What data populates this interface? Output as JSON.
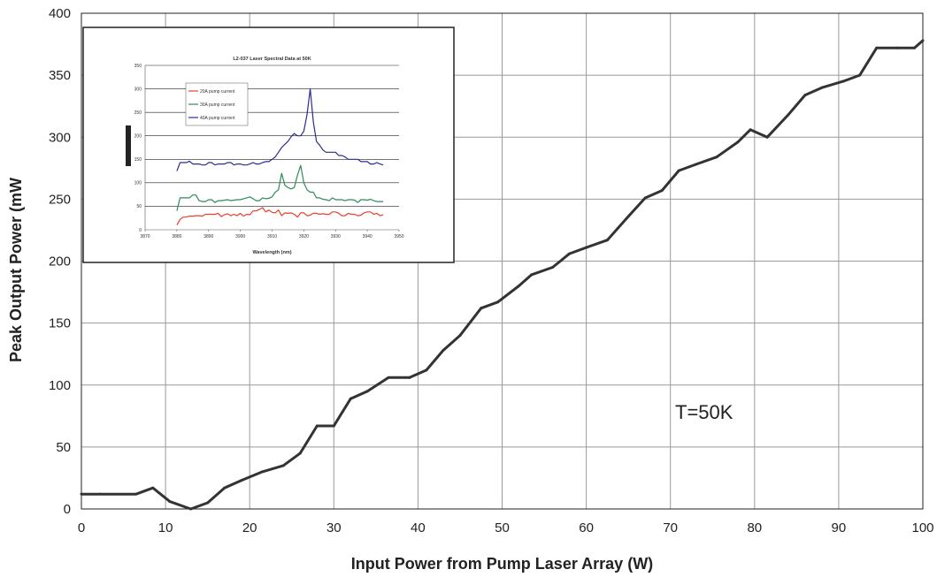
{
  "chart_data": [
    {
      "type": "line",
      "title": "",
      "xlabel": "Input Power from Pump Laser Array (W)",
      "ylabel": "Peak Output Power (mW",
      "xlim": [
        0,
        100
      ],
      "ylim": [
        0,
        400
      ],
      "xticks": [
        0,
        10,
        20,
        30,
        40,
        50,
        60,
        70,
        80,
        90,
        100
      ],
      "yticks": [
        0,
        50,
        100,
        150,
        200,
        250,
        300,
        350,
        400
      ],
      "grid": true,
      "annotation": "T=50K",
      "colors": {
        "line": "#333333",
        "grid": "#999999"
      },
      "series": [
        {
          "x": [
            0,
            2.2,
            6.5,
            8.5,
            10.5,
            13,
            15,
            17,
            19,
            21.5,
            24,
            26,
            28,
            30,
            32,
            34,
            36.5,
            39,
            41,
            43,
            45,
            47.5,
            49.5,
            52,
            53.5,
            56,
            58,
            60,
            62.5,
            65,
            67,
            69,
            71,
            73,
            75.5,
            78,
            79.5,
            81.5,
            84,
            86,
            88,
            90.5,
            92.5,
            94.5,
            97,
            99,
            100
          ],
          "y": [
            12,
            12,
            12,
            17,
            6,
            0,
            5,
            17,
            23,
            30,
            35,
            45,
            67,
            67,
            89,
            95,
            106,
            106,
            112,
            128,
            140,
            162,
            167,
            180,
            189,
            195,
            206,
            211,
            217,
            236,
            251,
            257,
            273,
            278,
            284,
            296,
            306,
            300,
            318,
            334,
            340,
            345,
            350,
            372,
            372,
            372,
            378
          ]
        }
      ]
    },
    {
      "type": "line",
      "title": "L2-037 Laser Spectral Data at 50K",
      "xlabel": "Wavelength (nm)",
      "ylabel": "",
      "xlim": [
        3870,
        3950
      ],
      "ylim": [
        0,
        350
      ],
      "xticks": [
        3870,
        3880,
        3890,
        3900,
        3910,
        3920,
        3930,
        3940,
        3950
      ],
      "yticks": [
        0,
        50,
        100,
        150,
        200,
        250,
        300,
        350
      ],
      "grid": true,
      "legend_position": "top-left",
      "series": [
        {
          "name": "20A pump current",
          "color": "#e8402a",
          "x": [
            3880,
            3881,
            3882,
            3883,
            3884,
            3885,
            3886,
            3887,
            3888,
            3889,
            3890,
            3891,
            3892,
            3893,
            3894,
            3895,
            3896,
            3897,
            3898,
            3899,
            3900,
            3901,
            3902,
            3903,
            3904,
            3905,
            3906,
            3907,
            3908,
            3909,
            3910,
            3911,
            3912,
            3913,
            3914,
            3915,
            3916,
            3917,
            3918,
            3919,
            3920,
            3921,
            3922,
            3923,
            3924,
            3925,
            3926,
            3927,
            3928,
            3929,
            3930,
            3931,
            3932,
            3933,
            3934,
            3935,
            3936,
            3937,
            3938,
            3939,
            3940,
            3941,
            3942,
            3943,
            3944,
            3945
          ],
          "y": [
            10,
            22,
            27,
            27,
            29,
            29,
            30,
            30,
            29,
            33,
            33,
            33,
            33,
            35,
            28,
            32,
            34,
            30,
            33,
            30,
            35,
            29,
            33,
            32,
            40,
            40,
            43,
            47,
            38,
            42,
            37,
            36,
            42,
            30,
            36,
            35,
            36,
            33,
            27,
            36,
            36,
            30,
            31,
            35,
            35,
            33,
            34,
            33,
            33,
            38,
            38,
            35,
            30,
            30,
            35,
            33,
            33,
            30,
            31,
            36,
            38,
            38,
            33,
            35,
            30,
            32
          ]
        },
        {
          "name": "30A pump current",
          "color": "#2e8b57",
          "x": [
            3880,
            3881,
            3882,
            3883,
            3884,
            3885,
            3886,
            3887,
            3888,
            3889,
            3890,
            3891,
            3892,
            3893,
            3894,
            3895,
            3896,
            3897,
            3898,
            3899,
            3900,
            3901,
            3902,
            3903,
            3904,
            3905,
            3906,
            3907,
            3908,
            3909,
            3910,
            3911,
            3912,
            3913,
            3914,
            3915,
            3916,
            3917,
            3918,
            3919,
            3920,
            3921,
            3922,
            3923,
            3924,
            3925,
            3926,
            3927,
            3928,
            3929,
            3930,
            3931,
            3932,
            3933,
            3934,
            3935,
            3936,
            3937,
            3938,
            3939,
            3940,
            3941,
            3942,
            3943,
            3944,
            3945
          ],
          "y": [
            40,
            68,
            68,
            68,
            68,
            74,
            74,
            62,
            60,
            60,
            64,
            64,
            58,
            62,
            62,
            63,
            64,
            62,
            63,
            64,
            64,
            66,
            68,
            70,
            66,
            62,
            62,
            68,
            66,
            67,
            70,
            80,
            85,
            120,
            95,
            90,
            87,
            90,
            116,
            137,
            100,
            85,
            80,
            80,
            68,
            68,
            65,
            64,
            62,
            68,
            64,
            64,
            64,
            62,
            64,
            64,
            63,
            58,
            64,
            64,
            63,
            65,
            62,
            60,
            60,
            60
          ]
        },
        {
          "name": "40A pump current",
          "color": "#2b2b8f",
          "x": [
            3880,
            3881,
            3882,
            3883,
            3884,
            3885,
            3886,
            3887,
            3888,
            3889,
            3890,
            3891,
            3892,
            3893,
            3894,
            3895,
            3896,
            3897,
            3898,
            3899,
            3900,
            3901,
            3902,
            3903,
            3904,
            3905,
            3906,
            3907,
            3908,
            3909,
            3910,
            3911,
            3912,
            3913,
            3914,
            3915,
            3916,
            3917,
            3918,
            3919,
            3920,
            3921,
            3922,
            3923,
            3924,
            3925,
            3926,
            3927,
            3928,
            3929,
            3930,
            3931,
            3932,
            3933,
            3934,
            3935,
            3936,
            3937,
            3938,
            3939,
            3940,
            3941,
            3942,
            3943,
            3944,
            3945
          ],
          "y": [
            125,
            143,
            143,
            143,
            146,
            140,
            140,
            140,
            138,
            138,
            143,
            143,
            138,
            140,
            140,
            140,
            143,
            143,
            138,
            140,
            140,
            138,
            138,
            140,
            143,
            140,
            140,
            143,
            145,
            145,
            150,
            155,
            165,
            175,
            182,
            188,
            198,
            205,
            200,
            200,
            210,
            245,
            300,
            230,
            188,
            180,
            170,
            165,
            165,
            165,
            165,
            158,
            158,
            155,
            150,
            150,
            150,
            150,
            145,
            145,
            145,
            140,
            140,
            143,
            140,
            138
          ]
        }
      ]
    }
  ]
}
